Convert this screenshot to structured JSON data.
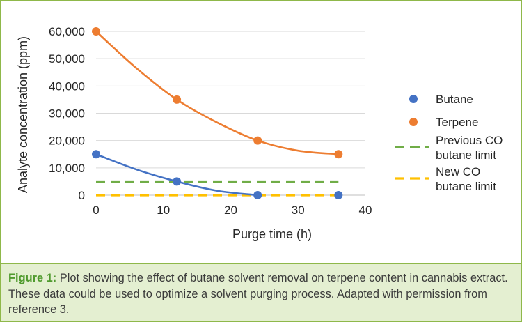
{
  "chart_data": {
    "type": "line",
    "xlabel": "Purge time (h)",
    "ylabel": "Analyte concentration (ppm)",
    "xlim": [
      0,
      40
    ],
    "ylim": [
      0,
      60000
    ],
    "x_ticks": [
      0,
      10,
      20,
      30,
      40
    ],
    "x_tick_labels": [
      "0",
      "10",
      "20",
      "30",
      "40"
    ],
    "y_ticks": [
      0,
      10000,
      20000,
      30000,
      40000,
      50000,
      60000
    ],
    "y_tick_labels": [
      "0",
      "10,000",
      "20,000",
      "30,000",
      "40,000",
      "50,000",
      "60,000"
    ],
    "grid": "horizontal",
    "legend_position": "right",
    "series": [
      {
        "name": "Butane",
        "kind": "scatter-smooth",
        "color": "#4472c4",
        "x": [
          0,
          12,
          24,
          36
        ],
        "y": [
          15000,
          5000,
          0,
          0
        ],
        "curve_x": [
          0,
          6,
          12,
          18,
          24
        ],
        "curve_y": [
          15000,
          9400,
          5000,
          1600,
          0
        ]
      },
      {
        "name": "Terpene",
        "kind": "scatter-smooth",
        "color": "#ed7d31",
        "x": [
          0,
          12,
          24,
          36
        ],
        "y": [
          60000,
          35000,
          20000,
          15000
        ],
        "curve_x": [
          0,
          6,
          12,
          18,
          24,
          30,
          36
        ],
        "curve_y": [
          60000,
          46500,
          35000,
          26600,
          20000,
          16300,
          15000
        ]
      },
      {
        "name": "Previous CO butane limit",
        "legend_lines": [
          "Previous CO",
          "butane limit"
        ],
        "kind": "dashed",
        "color": "#70ad47",
        "x": [
          0,
          36
        ],
        "y": [
          5000,
          5000
        ]
      },
      {
        "name": "New CO butane limit",
        "legend_lines": [
          "New CO",
          "butane limit"
        ],
        "kind": "dashed",
        "color": "#ffc000",
        "x": [
          0,
          36
        ],
        "y": [
          0,
          0
        ]
      }
    ]
  },
  "caption": {
    "label": "Figure 1:",
    "text": " Plot showing the effect of butane solvent removal on terpene content in cannabis extract. These data could be used to optimize a solvent purging process. Adapted with permission from reference 3."
  }
}
